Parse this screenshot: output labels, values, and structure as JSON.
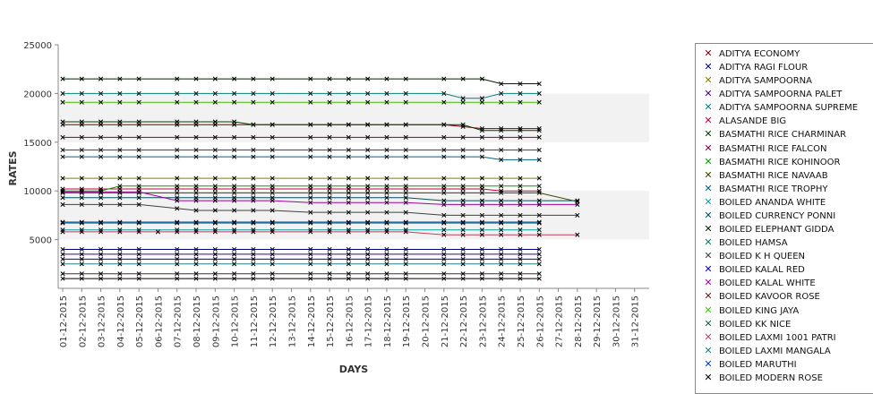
{
  "chart_data": {
    "type": "line",
    "xlabel": "DAYS",
    "ylabel": "RATES",
    "ylim": [
      0,
      25000
    ],
    "yticks": [
      5000,
      10000,
      15000,
      20000,
      25000
    ],
    "grid": false,
    "bands": [
      [
        15000,
        20000
      ],
      [
        5000,
        10000
      ]
    ],
    "legend_position": "right",
    "x": [
      "01-12-2015",
      "02-12-2015",
      "03-12-2015",
      "04-12-2015",
      "05-12-2015",
      "06-12-2015",
      "07-12-2015",
      "08-12-2015",
      "09-12-2015",
      "10-12-2015",
      "11-12-2015",
      "12-12-2015",
      "13-12-2015",
      "14-12-2015",
      "15-12-2015",
      "16-12-2015",
      "17-12-2015",
      "18-12-2015",
      "19-12-2015",
      "20-12-2015",
      "21-12-2015",
      "22-12-2015",
      "23-12-2015",
      "24-12-2015",
      "25-12-2015",
      "26-12-2015",
      "27-12-2015",
      "28-12-2015",
      "29-12-2015",
      "30-12-2015",
      "31-12-2015"
    ],
    "series": [
      {
        "name": "ADITYA ECONOMY",
        "color": "#800000",
        "values": [
          16800,
          16800,
          16800,
          16800,
          16800,
          null,
          16800,
          16800,
          16800,
          16800,
          16800,
          16800,
          null,
          16800,
          16800,
          16800,
          16800,
          16800,
          16800,
          null,
          16800,
          16600,
          16400,
          16400,
          16400,
          16400,
          null,
          null,
          null,
          null,
          null
        ]
      },
      {
        "name": "ADITYA RAGI FLOUR",
        "color": "#000080",
        "values": [
          4000,
          4000,
          4000,
          4000,
          4000,
          null,
          4000,
          4000,
          4000,
          4000,
          4000,
          4000,
          null,
          4000,
          4000,
          4000,
          4000,
          4000,
          4000,
          null,
          4000,
          4000,
          4000,
          4000,
          4000,
          4000,
          null,
          null,
          null,
          null,
          null
        ]
      },
      {
        "name": "ADITYA SAMPOORNA",
        "color": "#808000",
        "values": [
          11300,
          11300,
          11300,
          11300,
          11300,
          null,
          11300,
          11300,
          11300,
          11300,
          11300,
          11300,
          null,
          11300,
          11300,
          11300,
          11300,
          11300,
          11300,
          null,
          11300,
          11300,
          11300,
          11300,
          11300,
          11300,
          null,
          null,
          null,
          null,
          null
        ]
      },
      {
        "name": "ADITYA SAMPOORNA PALET",
        "color": "#400080",
        "values": [
          3500,
          3500,
          3500,
          3500,
          3500,
          null,
          3500,
          3500,
          3500,
          3500,
          3500,
          3500,
          null,
          3500,
          3500,
          3500,
          3500,
          3500,
          3500,
          null,
          3500,
          3500,
          3500,
          3500,
          3500,
          3500,
          null,
          null,
          null,
          null,
          null
        ]
      },
      {
        "name": "ADITYA SAMPOORNA SUPREME",
        "color": "#008080",
        "values": [
          20000,
          20000,
          20000,
          20000,
          20000,
          null,
          20000,
          20000,
          20000,
          20000,
          20000,
          20000,
          null,
          20000,
          20000,
          20000,
          20000,
          20000,
          20000,
          null,
          20000,
          19500,
          19500,
          20000,
          20000,
          20000,
          null,
          null,
          null,
          null,
          null
        ]
      },
      {
        "name": "ALASANDE BIG",
        "color": "#c00040",
        "values": [
          10200,
          10200,
          10200,
          10200,
          10200,
          null,
          10200,
          10200,
          10200,
          10200,
          10200,
          10200,
          null,
          10200,
          10200,
          10200,
          10200,
          10200,
          10200,
          null,
          10200,
          10200,
          10200,
          10000,
          10000,
          10000,
          null,
          null,
          null,
          null,
          null
        ]
      },
      {
        "name": "BASMATHI RICE CHARMINAR",
        "color": "#004000",
        "values": [
          17100,
          17100,
          17100,
          17100,
          17100,
          null,
          17100,
          17100,
          17100,
          17100,
          16800,
          16800,
          null,
          16800,
          16800,
          16800,
          16800,
          16800,
          16800,
          null,
          16800,
          16800,
          16200,
          16200,
          16200,
          16200,
          null,
          null,
          null,
          null,
          null
        ]
      },
      {
        "name": "BASMATHI RICE FALCON",
        "color": "#800040",
        "values": [
          15500,
          15500,
          15500,
          15500,
          15500,
          null,
          15500,
          15500,
          15500,
          15500,
          15500,
          15500,
          null,
          15500,
          15500,
          15500,
          15500,
          15500,
          15500,
          null,
          15500,
          15500,
          15500,
          15500,
          15500,
          15500,
          null,
          null,
          null,
          null,
          null
        ]
      },
      {
        "name": "BASMATHI RICE KOHINOOR",
        "color": "#00a000",
        "values": [
          10000,
          10000,
          10000,
          10500,
          10500,
          null,
          10500,
          10500,
          10500,
          10500,
          10500,
          10500,
          null,
          10500,
          10500,
          10500,
          10500,
          10500,
          10500,
          null,
          10500,
          10500,
          10500,
          10500,
          10500,
          10500,
          null,
          null,
          null,
          null,
          null
        ]
      },
      {
        "name": "BASMATHI RICE NAVAAB",
        "color": "#404000",
        "values": [
          9800,
          9800,
          9800,
          9800,
          9800,
          null,
          9800,
          9800,
          9800,
          9800,
          9800,
          9800,
          null,
          9800,
          9800,
          9800,
          9800,
          9800,
          9800,
          null,
          9800,
          9800,
          9800,
          9800,
          9800,
          9800,
          null,
          8900,
          null,
          null,
          null
        ]
      },
      {
        "name": "BASMATHI RICE TROPHY",
        "color": "#006080",
        "values": [
          13500,
          13500,
          13500,
          13500,
          13500,
          null,
          13500,
          13500,
          13500,
          13500,
          13500,
          13500,
          null,
          13500,
          13500,
          13500,
          13500,
          13500,
          13500,
          null,
          13500,
          13500,
          13500,
          13200,
          13200,
          13200,
          null,
          null,
          null,
          null,
          null
        ]
      },
      {
        "name": "BOILED ANANDA WHITE",
        "color": "#00a0a0",
        "values": [
          6000,
          6000,
          6000,
          6000,
          6000,
          null,
          6000,
          6000,
          6000,
          6000,
          6000,
          6000,
          null,
          6000,
          6000,
          6000,
          6000,
          6000,
          6000,
          null,
          6000,
          6000,
          6000,
          6000,
          6000,
          6000,
          null,
          null,
          null,
          null,
          null
        ]
      },
      {
        "name": "BOILED CURRENCY PONNI",
        "color": "#005060",
        "values": [
          9300,
          9300,
          9300,
          9300,
          9300,
          null,
          9300,
          9300,
          9300,
          9300,
          9300,
          9300,
          null,
          9300,
          9300,
          9300,
          9300,
          9300,
          9300,
          null,
          9000,
          9000,
          9000,
          9000,
          9000,
          9000,
          null,
          9000,
          null,
          null,
          null
        ]
      },
      {
        "name": "BOILED ELEPHANT GIDDA",
        "color": "#002000",
        "values": [
          21500,
          21500,
          21500,
          21500,
          21500,
          null,
          21500,
          21500,
          21500,
          21500,
          21500,
          21500,
          null,
          21500,
          21500,
          21500,
          21500,
          21500,
          21500,
          null,
          21500,
          21500,
          21500,
          21000,
          21000,
          21000,
          null,
          null,
          null,
          null,
          null
        ]
      },
      {
        "name": "BOILED HAMSA",
        "color": "#008060",
        "values": [
          6700,
          6700,
          6700,
          6700,
          6700,
          null,
          6700,
          6700,
          6700,
          6700,
          6700,
          6700,
          null,
          6700,
          6700,
          6700,
          6700,
          6700,
          6700,
          null,
          6700,
          6700,
          6700,
          6700,
          6700,
          6700,
          null,
          null,
          null,
          null,
          null
        ]
      },
      {
        "name": "BOILED K H QUEEN",
        "color": "#404040",
        "values": [
          8600,
          8600,
          8600,
          8600,
          8600,
          null,
          8200,
          8000,
          8000,
          8000,
          8000,
          8000,
          null,
          7800,
          7800,
          7800,
          7800,
          7800,
          7800,
          null,
          7500,
          7500,
          7500,
          7500,
          7500,
          7500,
          null,
          7500,
          null,
          null,
          null
        ]
      },
      {
        "name": "BOILED KALAL RED",
        "color": "#0000c0",
        "values": [
          3000,
          3000,
          3000,
          3000,
          3000,
          null,
          3000,
          3000,
          3000,
          3000,
          3000,
          3000,
          null,
          3000,
          3000,
          3000,
          3000,
          3000,
          3000,
          null,
          3000,
          3000,
          3000,
          3000,
          3000,
          3000,
          null,
          null,
          null,
          null,
          null
        ]
      },
      {
        "name": "BOILED KALAL WHITE",
        "color": "#a000a0",
        "values": [
          9900,
          9900,
          9900,
          9900,
          9900,
          null,
          9000,
          9000,
          9000,
          9000,
          9000,
          9000,
          null,
          8800,
          8800,
          8800,
          8800,
          8800,
          8800,
          null,
          8600,
          8600,
          8600,
          8600,
          8600,
          8600,
          null,
          8600,
          null,
          null,
          null
        ]
      },
      {
        "name": "BOILED KAVOOR ROSE",
        "color": "#602020",
        "values": [
          1500,
          1500,
          1500,
          1500,
          1500,
          null,
          1500,
          1500,
          1500,
          1500,
          1500,
          1500,
          null,
          1500,
          1500,
          1500,
          1500,
          1500,
          1500,
          null,
          1500,
          1500,
          1500,
          1500,
          1500,
          1500,
          null,
          null,
          null,
          null,
          null
        ]
      },
      {
        "name": "BOILED KING JAYA",
        "color": "#40c000",
        "values": [
          19100,
          19100,
          19100,
          19100,
          19100,
          null,
          19100,
          19100,
          19100,
          19100,
          19100,
          19100,
          null,
          19100,
          19100,
          19100,
          19100,
          19100,
          19100,
          null,
          19100,
          19100,
          19100,
          19100,
          19100,
          19100,
          null,
          null,
          null,
          null,
          null
        ]
      },
      {
        "name": "BOILED KK NICE",
        "color": "#206040",
        "values": [
          14200,
          14200,
          14200,
          14200,
          14200,
          null,
          14200,
          14200,
          14200,
          14200,
          14200,
          14200,
          null,
          14200,
          14200,
          14200,
          14200,
          14200,
          14200,
          null,
          14200,
          14200,
          14200,
          14200,
          14200,
          14200,
          null,
          null,
          null,
          null,
          null
        ]
      },
      {
        "name": "BOILED LAXMI 1001 PATRI",
        "color": "#c04060",
        "values": [
          5800,
          5800,
          5800,
          5800,
          5800,
          5800,
          5800,
          5800,
          5800,
          5800,
          5800,
          5800,
          null,
          5800,
          5800,
          5800,
          5800,
          5800,
          5800,
          null,
          5500,
          5500,
          5500,
          5500,
          5500,
          5500,
          null,
          5500,
          null,
          null,
          null
        ]
      },
      {
        "name": "BOILED LAXMI MANGALA",
        "color": "#208080",
        "values": [
          2500,
          2500,
          2500,
          2500,
          2500,
          null,
          2500,
          2500,
          2500,
          2500,
          2500,
          2500,
          null,
          2500,
          2500,
          2500,
          2500,
          2500,
          2500,
          null,
          2500,
          2500,
          2500,
          2500,
          2500,
          2500,
          null,
          null,
          null,
          null,
          null
        ]
      },
      {
        "name": "BOILED MARUTHI",
        "color": "#0040c0",
        "values": [
          6800,
          6800,
          6800,
          6800,
          6800,
          null,
          6800,
          6800,
          6800,
          6800,
          6800,
          6800,
          null,
          6800,
          6800,
          6800,
          6800,
          6800,
          6800,
          null,
          6800,
          6800,
          6800,
          6800,
          6800,
          6800,
          null,
          null,
          null,
          null,
          null
        ]
      },
      {
        "name": "BOILED MODERN ROSE",
        "color": "#000000",
        "values": [
          1000,
          1000,
          1000,
          1000,
          1000,
          null,
          1000,
          1000,
          1000,
          1000,
          1000,
          1000,
          null,
          1000,
          1000,
          1000,
          1000,
          1000,
          1000,
          null,
          1000,
          1000,
          1000,
          1000,
          1000,
          1000,
          null,
          null,
          null,
          null,
          null
        ]
      }
    ]
  }
}
